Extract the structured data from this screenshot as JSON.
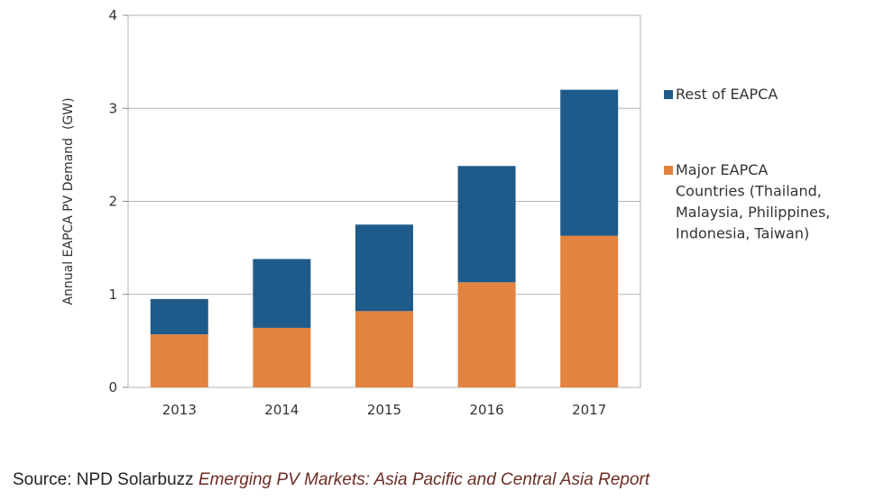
{
  "chart_data": {
    "type": "bar",
    "stacked": true,
    "categories": [
      "2013",
      "2014",
      "2015",
      "2016",
      "2017"
    ],
    "series": [
      {
        "name": "Major EAPCA Countries (Thailand, Malaysia, Philippines, Indonesia, Taiwan)",
        "legend_lines": [
          "Major EAPCA",
          "Countries (Thailand,",
          "Malaysia, Philippines,",
          "Indonesia, Taiwan)"
        ],
        "values": [
          0.57,
          0.64,
          0.82,
          1.13,
          1.63
        ],
        "color": "#e2843f"
      },
      {
        "name": "Rest of EAPCA",
        "legend_lines": [
          "Rest of EAPCA"
        ],
        "values": [
          0.38,
          0.74,
          0.93,
          1.25,
          1.57
        ],
        "color": "#1f5b8a"
      }
    ],
    "ylabel": "Annual EAPCA PV Demand  (GW)",
    "ylim": [
      0,
      4
    ],
    "yticks": [
      "0",
      "1",
      "2",
      "3",
      "4"
    ],
    "grid": true,
    "legend_position": "right"
  },
  "source": {
    "label": "Source: NPD Solarbuzz",
    "title": "Emerging PV Markets: Asia Pacific and Central Asia Report"
  }
}
